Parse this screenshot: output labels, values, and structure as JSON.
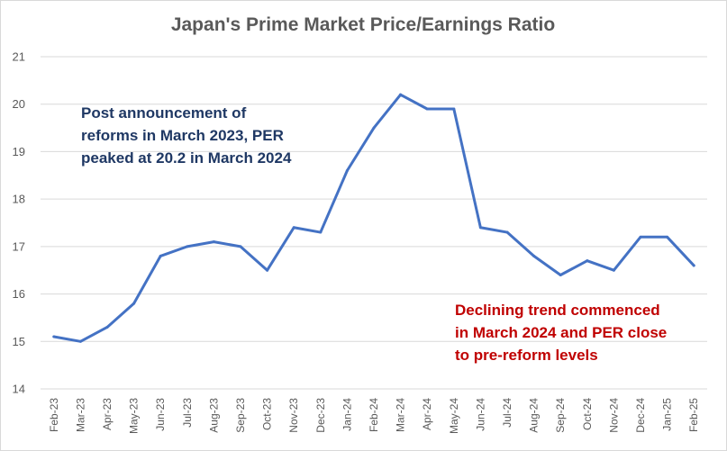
{
  "chart_data": {
    "type": "line",
    "title": "Japan's Prime Market Price/Earnings Ratio",
    "xlabel": "",
    "ylabel": "",
    "ylim": [
      14,
      21
    ],
    "yticks": [
      14,
      15,
      16,
      17,
      18,
      19,
      20,
      21
    ],
    "grid": true,
    "legend": "none",
    "categories": [
      "Feb-23",
      "Mar-23",
      "Apr-23",
      "May-23",
      "Jun-23",
      "Jul-23",
      "Aug-23",
      "Sep-23",
      "Oct-23",
      "Nov-23",
      "Dec-23",
      "Jan-24",
      "Feb-24",
      "Mar-24",
      "Apr-24",
      "May-24",
      "Jun-24",
      "Jul-24",
      "Aug-24",
      "Sep-24",
      "Oct-24",
      "Nov-24",
      "Dec-24",
      "Jan-25",
      "Feb-25"
    ],
    "series": [
      {
        "values": [
          15.1,
          15.0,
          15.3,
          15.8,
          16.8,
          17.0,
          17.1,
          17.0,
          16.5,
          17.4,
          17.3,
          18.6,
          19.5,
          20.2,
          19.9,
          19.9,
          17.4,
          17.3,
          16.8,
          16.4,
          16.7,
          16.5,
          17.2,
          17.2,
          16.6
        ],
        "color": "#4472c4"
      }
    ],
    "annotations": [
      {
        "lines": [
          "Post announcement of",
          "reforms in March 2023, PER",
          "peaked at 20.2 in March 2024"
        ],
        "color": "#1f3864"
      },
      {
        "lines": [
          "Declining trend commenced",
          "in March 2024 and PER close",
          "to pre-reform levels"
        ],
        "color": "#c00000"
      }
    ],
    "colors": {
      "gridline": "#d9d9d9",
      "text": "#595959"
    }
  }
}
